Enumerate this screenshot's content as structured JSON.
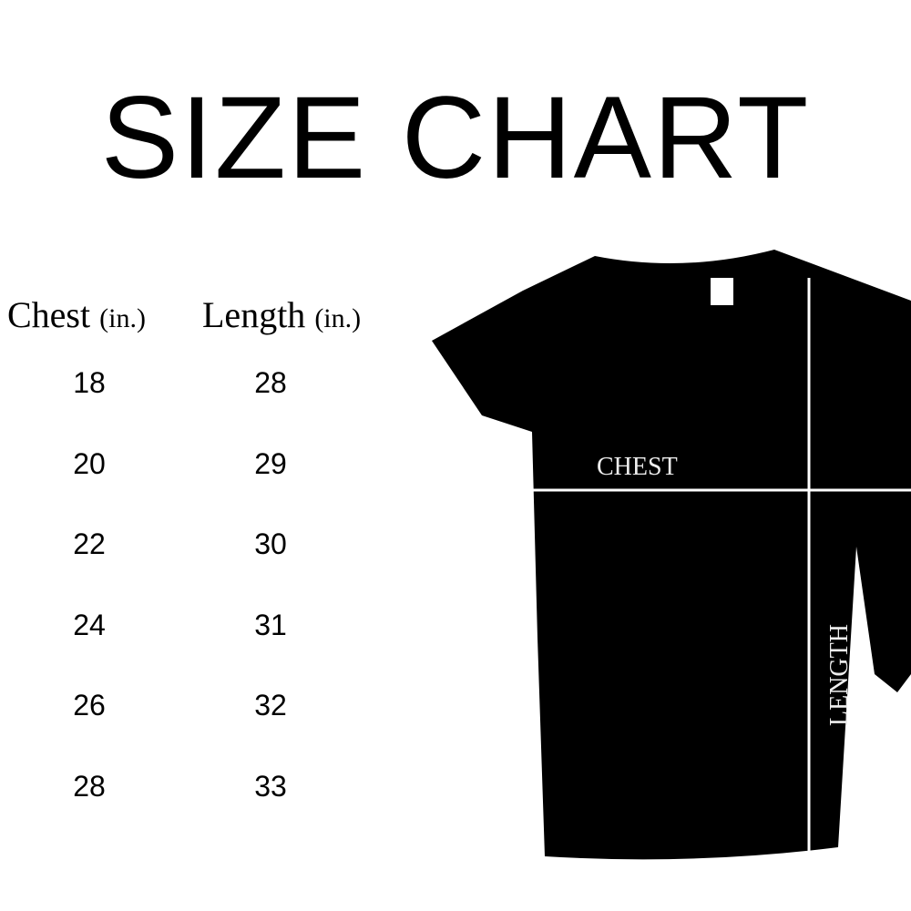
{
  "title": "SIZE CHART",
  "table": {
    "headers": [
      {
        "label": "Chest",
        "unit": "(in.)"
      },
      {
        "label": "Length",
        "unit": "(in.)"
      }
    ],
    "rows": [
      {
        "chest": "18",
        "length": "28"
      },
      {
        "chest": "20",
        "length": "29"
      },
      {
        "chest": "22",
        "length": "30"
      },
      {
        "chest": "24",
        "length": "31"
      },
      {
        "chest": "26",
        "length": "32"
      },
      {
        "chest": "28",
        "length": "33"
      }
    ]
  },
  "diagram": {
    "chest_label": "CHEST",
    "length_label": "LENGTH",
    "shirt_color": "#000000",
    "line_color": "#ffffff"
  }
}
